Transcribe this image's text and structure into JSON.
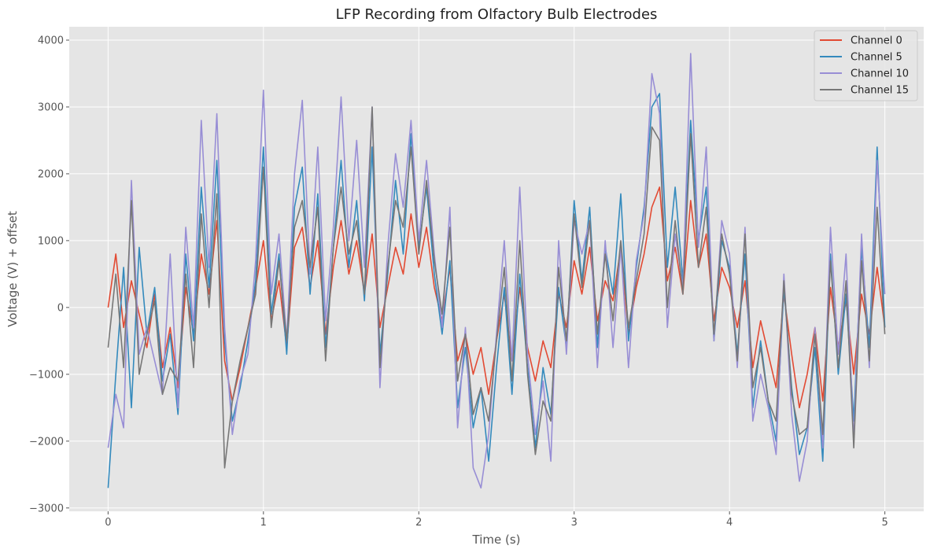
{
  "chart_data": {
    "type": "line",
    "title": "LFP Recording from Olfactory Bulb Electrodes",
    "xlabel": "Time (s)",
    "ylabel": "Voltage (V) + offset",
    "xlim": [
      -0.25,
      5.25
    ],
    "ylim": [
      -3050,
      4200
    ],
    "x_ticks": [
      0,
      1,
      2,
      3,
      4,
      5
    ],
    "x_tick_labels": [
      "0",
      "1",
      "2",
      "3",
      "4",
      "5"
    ],
    "y_ticks": [
      -3000,
      -2000,
      -1000,
      0,
      1000,
      2000,
      3000,
      4000
    ],
    "y_tick_labels": [
      "−3000",
      "−2000",
      "−1000",
      "0",
      "1000",
      "2000",
      "3000",
      "4000"
    ],
    "grid": true,
    "legend_position": "top-right",
    "style": {
      "background": "#E5E5E5",
      "grid_color": "#FFFFFF"
    },
    "x": [
      0.0,
      0.05,
      0.1,
      0.15,
      0.2,
      0.25,
      0.3,
      0.35,
      0.4,
      0.45,
      0.5,
      0.55,
      0.6,
      0.65,
      0.7,
      0.75,
      0.8,
      0.85,
      0.9,
      0.95,
      1.0,
      1.05,
      1.1,
      1.15,
      1.2,
      1.25,
      1.3,
      1.35,
      1.4,
      1.45,
      1.5,
      1.55,
      1.6,
      1.65,
      1.7,
      1.75,
      1.8,
      1.85,
      1.9,
      1.95,
      2.0,
      2.05,
      2.1,
      2.15,
      2.2,
      2.25,
      2.3,
      2.35,
      2.4,
      2.45,
      2.5,
      2.55,
      2.6,
      2.65,
      2.7,
      2.75,
      2.8,
      2.85,
      2.9,
      2.95,
      3.0,
      3.05,
      3.1,
      3.15,
      3.2,
      3.25,
      3.3,
      3.35,
      3.4,
      3.45,
      3.5,
      3.55,
      3.6,
      3.65,
      3.7,
      3.75,
      3.8,
      3.85,
      3.9,
      3.95,
      4.0,
      4.05,
      4.1,
      4.15,
      4.2,
      4.25,
      4.3,
      4.35,
      4.4,
      4.45,
      4.5,
      4.55,
      4.6,
      4.65,
      4.7,
      4.75,
      4.8,
      4.85,
      4.9,
      4.95,
      5.0
    ],
    "series": [
      {
        "name": "Channel 0",
        "color": "#E24A33",
        "values": [
          0,
          800,
          -300,
          400,
          -100,
          -600,
          200,
          -900,
          -300,
          -1200,
          300,
          -400,
          800,
          200,
          1300,
          -800,
          -1400,
          -900,
          -300,
          300,
          1000,
          -200,
          400,
          -600,
          900,
          1200,
          300,
          1000,
          -400,
          600,
          1300,
          500,
          1000,
          200,
          1100,
          -300,
          300,
          900,
          500,
          1400,
          600,
          1200,
          300,
          -200,
          600,
          -800,
          -400,
          -1000,
          -600,
          -1300,
          -500,
          200,
          -800,
          300,
          -600,
          -1100,
          -500,
          -900,
          200,
          -300,
          700,
          200,
          900,
          -200,
          400,
          100,
          900,
          -400,
          300,
          800,
          1500,
          1800,
          400,
          900,
          200,
          1600,
          600,
          1100,
          -200,
          600,
          300,
          -300,
          400,
          -900,
          -200,
          -700,
          -1200,
          200,
          -700,
          -1500,
          -1000,
          -300,
          -1400,
          300,
          -600,
          100,
          -1000,
          200,
          -400,
          600,
          -300
        ]
      },
      {
        "name": "Channel 5",
        "color": "#348ABD",
        "values": [
          -2700,
          -1000,
          600,
          -1500,
          900,
          -400,
          300,
          -1100,
          -400,
          -1600,
          800,
          -500,
          1800,
          300,
          2200,
          -500,
          -1700,
          -1200,
          -500,
          400,
          2400,
          -100,
          800,
          -700,
          1500,
          2100,
          200,
          1700,
          -600,
          900,
          2200,
          600,
          1600,
          100,
          2400,
          -700,
          500,
          1900,
          800,
          2600,
          900,
          1800,
          500,
          -400,
          700,
          -1500,
          -600,
          -1800,
          -1200,
          -2300,
          -900,
          300,
          -1300,
          500,
          -900,
          -2100,
          -900,
          -1600,
          300,
          -600,
          1600,
          400,
          1500,
          -600,
          900,
          200,
          1700,
          -500,
          600,
          1500,
          3000,
          3200,
          600,
          1800,
          400,
          2800,
          1000,
          1800,
          -500,
          1000,
          600,
          -700,
          800,
          -1500,
          -500,
          -1400,
          -2000,
          300,
          -1200,
          -2200,
          -1800,
          -600,
          -2300,
          800,
          -1000,
          200,
          -1700,
          900,
          -600,
          2400,
          -300
        ]
      },
      {
        "name": "Channel 10",
        "color": "#988ED5",
        "values": [
          -2100,
          -1300,
          -1800,
          1900,
          -700,
          -300,
          -800,
          -1300,
          800,
          -1500,
          1200,
          -300,
          2800,
          600,
          2900,
          -300,
          -1900,
          -1100,
          -700,
          700,
          3250,
          200,
          1100,
          -500,
          2000,
          3100,
          500,
          2400,
          -200,
          1200,
          3150,
          1000,
          2500,
          600,
          3000,
          -1200,
          900,
          2300,
          1500,
          2800,
          1000,
          2200,
          800,
          -300,
          1500,
          -1800,
          -300,
          -2400,
          -2700,
          -1900,
          -400,
          1000,
          -800,
          1800,
          -700,
          -1900,
          -1100,
          -2300,
          1000,
          -700,
          1300,
          800,
          1300,
          -900,
          1000,
          -600,
          900,
          -900,
          700,
          1400,
          3500,
          2900,
          -300,
          1100,
          300,
          3800,
          900,
          2400,
          -500,
          1300,
          800,
          -900,
          1200,
          -1700,
          -1000,
          -1500,
          -2200,
          500,
          -1600,
          -2600,
          -2000,
          -300,
          -2100,
          1200,
          -700,
          800,
          -2000,
          1100,
          -900,
          2200,
          200
        ]
      },
      {
        "name": "Channel 15",
        "color": "#777777",
        "values": [
          -600,
          500,
          -900,
          1600,
          -1000,
          -400,
          100,
          -1300,
          -900,
          -1100,
          500,
          -900,
          1400,
          0,
          1700,
          -2400,
          -1400,
          -800,
          -300,
          200,
          2100,
          -300,
          700,
          -500,
          1200,
          1600,
          600,
          1500,
          -800,
          900,
          1800,
          800,
          1300,
          200,
          3000,
          -900,
          600,
          1600,
          1200,
          2400,
          800,
          1900,
          700,
          -100,
          1200,
          -1100,
          -400,
          -1600,
          -1200,
          -1700,
          -500,
          600,
          -1100,
          1000,
          -1000,
          -2200,
          -1400,
          -1700,
          600,
          -500,
          1400,
          300,
          1300,
          -400,
          800,
          -200,
          1000,
          -300,
          400,
          1100,
          2700,
          2500,
          0,
          1300,
          200,
          2600,
          600,
          1500,
          -400,
          1100,
          500,
          -800,
          1100,
          -1200,
          -600,
          -1400,
          -1700,
          400,
          -1300,
          -1900,
          -1800,
          -400,
          -1900,
          700,
          -900,
          400,
          -2100,
          700,
          -800,
          1500,
          -400
        ]
      }
    ]
  }
}
